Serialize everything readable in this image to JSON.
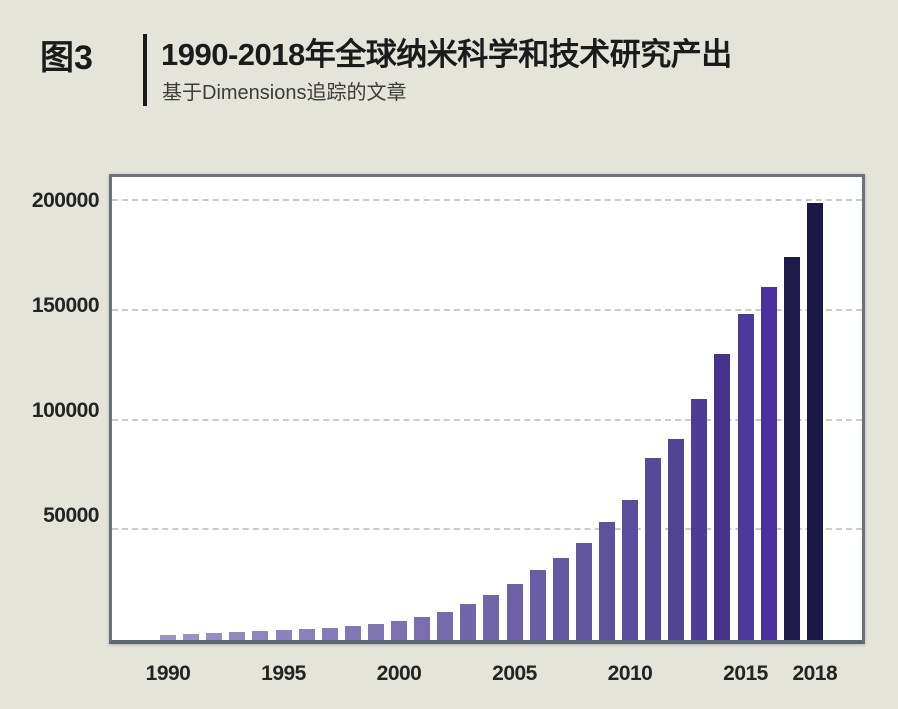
{
  "figure": {
    "label": "图3",
    "title": "1990-2018年全球纳米科学和技术研究产出",
    "subtitle": "基于Dimensions追踪的文章"
  },
  "chart_data": {
    "type": "bar",
    "title": "1990-2018年全球纳米科学和技术研究产出",
    "subtitle": "基于Dimensions追踪的文章",
    "xlabel": "",
    "ylabel": "",
    "categories": [
      1990,
      1991,
      1992,
      1993,
      1994,
      1995,
      1996,
      1997,
      1998,
      1999,
      2000,
      2001,
      2002,
      2003,
      2004,
      2005,
      2006,
      2007,
      2008,
      2009,
      2010,
      2011,
      2012,
      2013,
      2014,
      2015,
      2016,
      2017,
      2018
    ],
    "values": [
      2300,
      2700,
      3100,
      3500,
      3900,
      4400,
      5000,
      5600,
      6200,
      7100,
      8600,
      10300,
      12600,
      16200,
      20700,
      25300,
      31800,
      37400,
      44400,
      53800,
      63600,
      82800,
      91800,
      109800,
      130400,
      148500,
      161100,
      174400,
      199100
    ],
    "bar_colors": [
      "#9b94c7",
      "#988fc5",
      "#958cc3",
      "#9289c1",
      "#8f86bf",
      "#8c82bd",
      "#897fbb",
      "#867bb9",
      "#8378b7",
      "#8075b5",
      "#7d71b3",
      "#7a6eb1",
      "#776bae",
      "#7367ac",
      "#7064aa",
      "#6d60a7",
      "#695da5",
      "#6659a3",
      "#6256a0",
      "#5e529e",
      "#5a4d9b",
      "#564998",
      "#524495",
      "#4c3c94",
      "#47338e",
      "#4b3a9a",
      "#4a2f9f",
      "#1e1b4b",
      "#1b1845"
    ],
    "x_tick_labels": [
      "1990",
      "1995",
      "2000",
      "2005",
      "2010",
      "2015",
      "2018"
    ],
    "x_tick_years": [
      1990,
      1995,
      2000,
      2005,
      2010,
      2015,
      2018
    ],
    "y_tick_labels": [
      "50000",
      "100000",
      "150000",
      "200000"
    ],
    "y_ticks": [
      50000,
      100000,
      150000,
      200000
    ],
    "ylim": [
      0,
      211000
    ],
    "grid": "horizontal-dashed",
    "legend": "none",
    "colors": {
      "page_background": "#e4e4db",
      "plot_background": "#ffffff",
      "plot_border": "#68737e",
      "gridline": "#cbcbc8",
      "text": "#1d201e",
      "bar_light": "#9b94c7",
      "bar_dark": "#1b1845"
    }
  }
}
